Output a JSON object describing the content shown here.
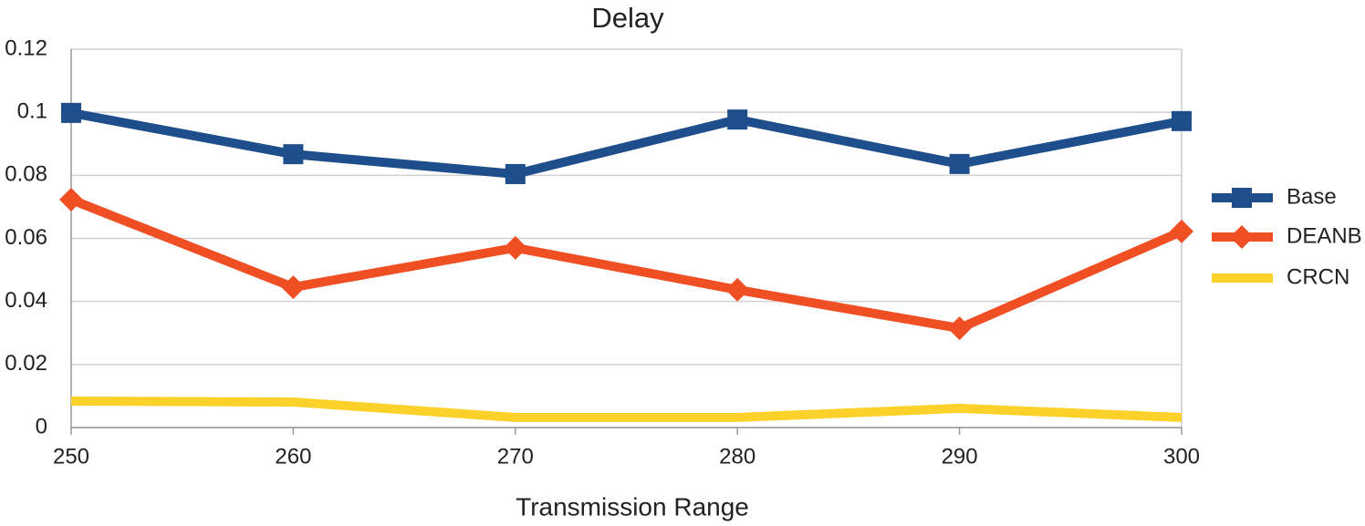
{
  "chart_data": {
    "type": "line",
    "title": "Delay",
    "x_label": "Transmission Range",
    "x": [
      250,
      260,
      270,
      280,
      290,
      300
    ],
    "series": [
      {
        "name": "Base",
        "color": "#1f4e8c",
        "marker": "square",
        "values": [
          0.0998,
          0.0867,
          0.0804,
          0.0977,
          0.0836,
          0.0972
        ]
      },
      {
        "name": "DEANB",
        "color": "#f04e23",
        "marker": "diamond",
        "values": [
          0.0723,
          0.0445,
          0.057,
          0.0437,
          0.0315,
          0.0622
        ]
      },
      {
        "name": "CRCN",
        "color": "#fcd12a",
        "marker": "none",
        "values": [
          0.0084,
          0.0081,
          0.0032,
          0.0032,
          0.0061,
          0.0032
        ]
      }
    ],
    "xlim": [
      250,
      300
    ],
    "xticks": [
      250,
      260,
      270,
      280,
      290,
      300
    ],
    "ylim": [
      0,
      0.12
    ],
    "yticks": [
      0,
      0.02,
      0.04,
      0.06,
      0.08,
      0.1,
      0.12
    ],
    "grid": true,
    "legend": "right"
  }
}
